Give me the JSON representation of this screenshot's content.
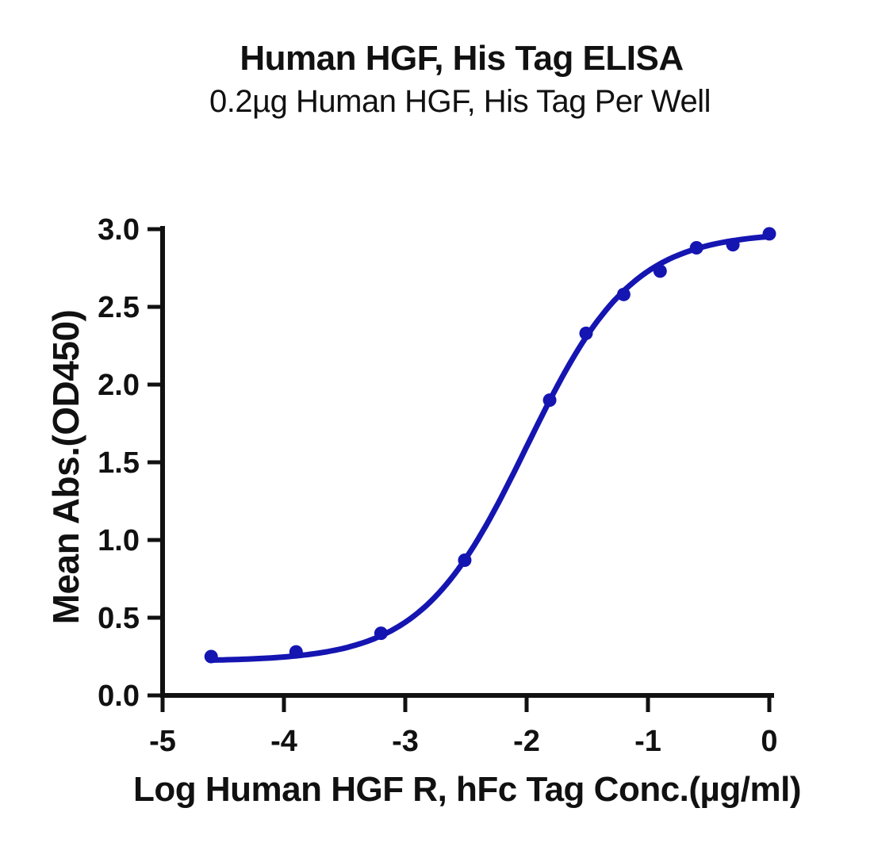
{
  "chart_data": {
    "type": "scatter-line",
    "title": "Human HGF, His Tag ELISA",
    "subtitle": "0.2µg Human HGF, His Tag Per Well",
    "xlabel": "Log Human HGF R, hFc Tag Conc.(µg/ml)",
    "ylabel": "Mean Abs.(OD450)",
    "xlim": [
      -5,
      0
    ],
    "ylim": [
      0,
      3
    ],
    "xticks": [
      -5,
      -4,
      -3,
      -2,
      -1,
      0
    ],
    "yticks": [
      0.0,
      0.5,
      1.0,
      1.5,
      2.0,
      2.5,
      3.0
    ],
    "x": [
      -4.6,
      -3.9,
      -3.2,
      -2.51,
      -1.81,
      -1.51,
      -1.2,
      -0.9,
      -0.6,
      -0.3,
      0.0
    ],
    "y": [
      0.25,
      0.28,
      0.4,
      0.87,
      1.9,
      2.33,
      2.58,
      2.73,
      2.88,
      2.9,
      2.97
    ],
    "curve_fit": {
      "model": "4PL",
      "bottom": 0.22,
      "top": 2.98,
      "logEC50": -2.0,
      "hillslope": 1.0
    },
    "series_color": "#1515b2",
    "axis_color": "#111111",
    "background_color": "#ffffff",
    "grid": false,
    "legend": null
  }
}
